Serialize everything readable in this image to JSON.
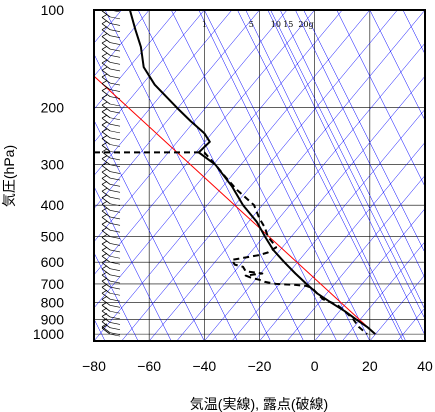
{
  "chart_data": {
    "type": "line",
    "title": "",
    "xlabel": "気温(実線), 露点(破線)",
    "ylabel": "気圧(hPa)",
    "xlim": [
      -80,
      40
    ],
    "ylim": [
      1050,
      100
    ],
    "y_scale": "log",
    "x_ticks": [
      -80,
      -60,
      -40,
      -20,
      0,
      20,
      40
    ],
    "x_tick_labels": [
      "−80",
      "−60",
      "−40",
      "−20",
      "0",
      "20",
      "40"
    ],
    "y_ticks": [
      100,
      200,
      300,
      400,
      500,
      600,
      700,
      800,
      900,
      1000
    ],
    "y_tick_labels": [
      "100",
      "200",
      "300",
      "400",
      "500",
      "600",
      "700",
      "800",
      "900",
      "1000"
    ],
    "grid": true,
    "isotherm_colors": "#0000ff",
    "red_line_color": "#ff0000",
    "mixing_ratio_labels": [
      "1",
      "5",
      "10",
      "15",
      "20g"
    ],
    "mixing_ratio_label_x": [
      -42,
      -25,
      -17,
      -12.5,
      -7
    ],
    "series": [
      {
        "style": "solid",
        "x": [
          -67,
          -65,
          -63,
          -62,
          -58,
          -50,
          -45,
          -40,
          -38,
          -42,
          -36,
          -30,
          -26,
          -21,
          -18,
          -15,
          -11,
          -7,
          -3,
          1,
          6,
          11,
          15,
          19,
          22
        ],
        "y": [
          100,
          115,
          130,
          150,
          170,
          200,
          220,
          240,
          255,
          275,
          300,
          350,
          400,
          450,
          500,
          550,
          600,
          650,
          700,
          750,
          800,
          850,
          900,
          950,
          1000
        ]
      },
      {
        "style": "dashed",
        "x": [
          -80,
          -40,
          -36,
          -32,
          -28,
          -22,
          -20,
          -18,
          -17,
          -15,
          -14,
          -17,
          -20,
          -30,
          -29,
          -26,
          -25,
          -22,
          -19,
          -25,
          -23,
          -20,
          -18,
          -14,
          -7,
          -3,
          -1,
          1,
          3,
          8,
          11,
          14,
          16,
          19
        ],
        "y": [
          275,
          275,
          300,
          330,
          360,
          400,
          440,
          470,
          500,
          525,
          540,
          560,
          570,
          590,
          610,
          620,
          640,
          645,
          650,
          660,
          670,
          680,
          690,
          700,
          705,
          710,
          720,
          750,
          780,
          810,
          850,
          900,
          950,
          1000
        ]
      }
    ],
    "red_line": {
      "x": [
        -80,
        22
      ],
      "y": [
        160,
        1000
      ]
    },
    "wind_barbs": {
      "pressure_levels": [
        100,
        105,
        110,
        115,
        120,
        126,
        132,
        138,
        145,
        152,
        160,
        168,
        176,
        185,
        195,
        205,
        215,
        225,
        236,
        248,
        260,
        273,
        286,
        300,
        315,
        330,
        345,
        360,
        378,
        396,
        415,
        435,
        455,
        478,
        500,
        525,
        550,
        575,
        600,
        628,
        656,
        686,
        716,
        748,
        780,
        815,
        850,
        885,
        920,
        955,
        990,
        1000
      ]
    }
  }
}
